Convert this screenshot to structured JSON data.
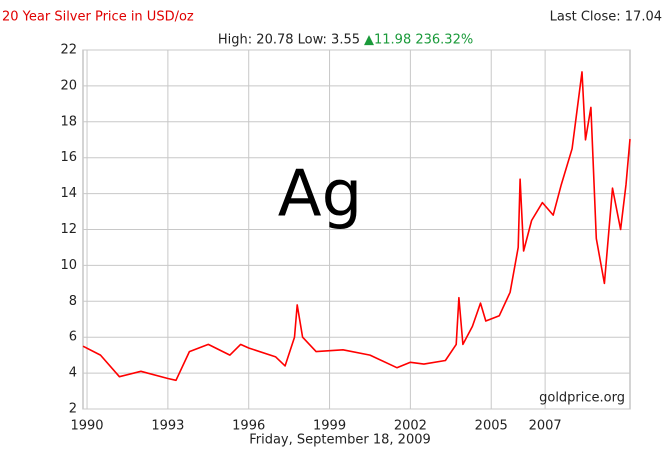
{
  "chart_data": {
    "type": "line",
    "title": "20 Year Silver Price in USD/oz",
    "last_close": "Last Close: 17.04",
    "subtitle": "High: 20.78 Low: 3.55",
    "change": "▲11.98 236.32%",
    "symbol": "Ag",
    "source": "goldprice.org",
    "date": "Friday, September 18, 2009",
    "x": [
      1989.85,
      1990.5,
      1991.2,
      1992.0,
      1993.0,
      1993.3,
      1993.8,
      1994.5,
      1995.3,
      1995.7,
      1996.0,
      1997.0,
      1997.35,
      1997.7,
      1997.8,
      1998.0,
      1998.5,
      1999.5,
      2000.5,
      2001.5,
      2002.0,
      2002.5,
      2003.3,
      2003.7,
      2003.8,
      2003.95,
      2004.3,
      2004.6,
      2004.8,
      2005.3,
      2005.7,
      2006.0,
      2006.07,
      2006.2,
      2006.5,
      2006.9,
      2007.3,
      2007.6,
      2008.0,
      2008.37,
      2008.5,
      2008.7,
      2008.9,
      2009.2,
      2009.5,
      2009.8,
      2010.0,
      2010.15
    ],
    "series": [
      {
        "name": "Silver",
        "color": "#ff0000",
        "values": [
          5.5,
          5.0,
          3.8,
          4.1,
          3.7,
          3.6,
          5.2,
          5.6,
          5.0,
          5.6,
          5.4,
          4.9,
          4.4,
          6.0,
          7.8,
          6.0,
          5.2,
          5.3,
          5.0,
          4.3,
          4.6,
          4.5,
          4.7,
          5.6,
          8.2,
          5.6,
          6.6,
          7.9,
          6.9,
          7.2,
          8.5,
          11,
          14.8,
          10.8,
          12.5,
          13.5,
          12.8,
          14.5,
          16.5,
          20.78,
          17.0,
          18.8,
          11.5,
          9.0,
          14.3,
          12.0,
          14.5,
          17.04
        ]
      }
    ],
    "xlim": [
      1989.85,
      2010.15
    ],
    "xticks": [
      1990,
      1993,
      1996,
      1999,
      2002,
      2005,
      2007
    ],
    "ylim": [
      2,
      22
    ],
    "yticks": [
      2,
      4,
      6,
      8,
      10,
      12,
      14,
      16,
      18,
      20,
      22
    ],
    "grid": true
  }
}
